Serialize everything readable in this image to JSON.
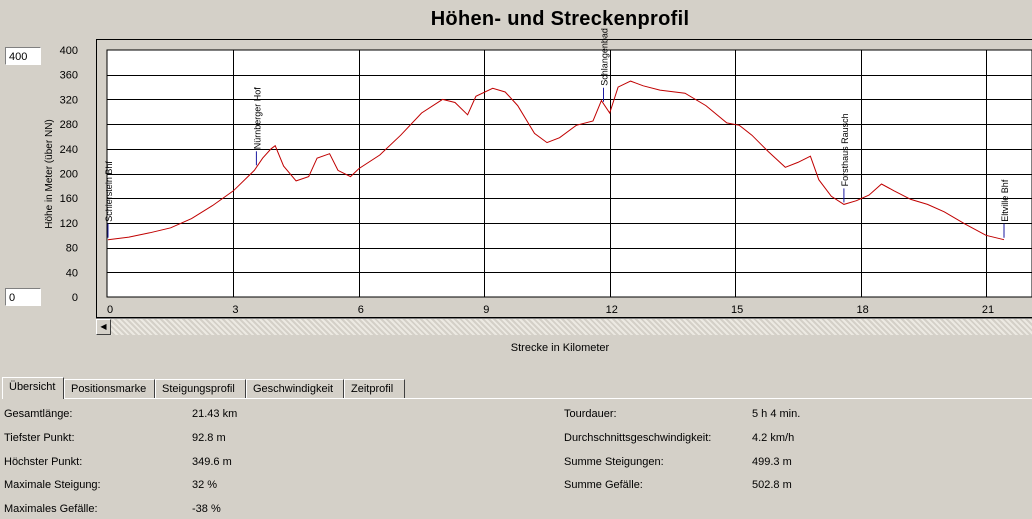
{
  "chart": {
    "title": "Höhen- und Streckenprofil",
    "ymax_box": "400",
    "ymin_box": "0",
    "xlabel": "Strecke in Kilometer",
    "ylabel": "Höhe in Meter (über NN)"
  },
  "tabs": [
    {
      "label": "Übersicht",
      "active": true
    },
    {
      "label": "Positionsmarke",
      "active": false
    },
    {
      "label": "Steigungsprofil",
      "active": false
    },
    {
      "label": "Geschwindigkeit",
      "active": false
    },
    {
      "label": "Zeitprofil",
      "active": false
    }
  ],
  "summary_left": [
    {
      "label": "Gesamtlänge:",
      "value": "21.43 km"
    },
    {
      "label": "Tiefster Punkt:",
      "value": "92.8 m"
    },
    {
      "label": "Höchster Punkt:",
      "value": "349.6 m"
    },
    {
      "label": "Maximale Steigung:",
      "value": "32 %"
    },
    {
      "label": "Maximales Gefälle:",
      "value": "-38 %"
    }
  ],
  "summary_right": [
    {
      "label": "Tourdauer:",
      "value": "5 h 4 min."
    },
    {
      "label": "Durchschnittsgeschwindigkeit:",
      "value": "4.2 km/h"
    },
    {
      "label": "Summe Steigungen:",
      "value": "499.3 m"
    },
    {
      "label": "Summe Gefälle:",
      "value": "502.8 m"
    }
  ],
  "chart_data": {
    "type": "line",
    "title": "Höhen- und Streckenprofil",
    "xlabel": "Strecke in Kilometer",
    "ylabel": "Höhe in Meter (über NN)",
    "xlim": [
      0,
      21.43
    ],
    "ylim": [
      0,
      400
    ],
    "xticks": [
      0,
      3,
      6,
      9,
      12,
      15,
      18,
      21
    ],
    "yticks": [
      0,
      40,
      80,
      120,
      160,
      200,
      240,
      280,
      320,
      360,
      400
    ],
    "grid": true,
    "line_color": "#c00000",
    "series": [
      {
        "x": [
          0,
          0.5,
          1.0,
          1.5,
          2.0,
          2.5,
          3.0,
          3.5,
          3.7,
          3.9,
          4.0,
          4.2,
          4.5,
          4.8,
          5.0,
          5.3,
          5.5,
          5.8,
          6.0,
          6.5,
          7.0,
          7.5,
          8.0,
          8.3,
          8.6,
          8.8,
          9.2,
          9.5,
          9.8,
          10.2,
          10.5,
          10.8,
          11.2,
          11.6,
          11.8,
          12.0,
          12.2,
          12.5,
          12.8,
          13.2,
          13.8,
          14.3,
          14.8,
          15.1,
          15.4,
          15.8,
          16.2,
          16.5,
          16.8,
          17.0,
          17.3,
          17.6,
          17.9,
          18.2,
          18.5,
          18.8,
          19.2,
          19.6,
          20.0,
          20.5,
          21.0,
          21.43
        ],
        "y": [
          92.8,
          97,
          104,
          112,
          127,
          148,
          172,
          205,
          225,
          240,
          245,
          212,
          188,
          195,
          225,
          232,
          205,
          195,
          208,
          230,
          262,
          298,
          320,
          315,
          295,
          325,
          338,
          332,
          310,
          265,
          250,
          258,
          278,
          285,
          318,
          298,
          340,
          349.6,
          342,
          335,
          330,
          310,
          282,
          278,
          262,
          235,
          210,
          218,
          228,
          190,
          163,
          150,
          156,
          165,
          183,
          172,
          158,
          150,
          138,
          118,
          100,
          92.8
        ]
      }
    ],
    "annotations": [
      {
        "x": 0,
        "label": "Schierstein Bhf"
      },
      {
        "x": 3.55,
        "label": "Nürnberger Hof"
      },
      {
        "x": 11.85,
        "label": "Schlangenbad"
      },
      {
        "x": 17.6,
        "label": "Forsthaus Rausch"
      },
      {
        "x": 21.43,
        "label": "Eltville Bhf"
      }
    ]
  }
}
